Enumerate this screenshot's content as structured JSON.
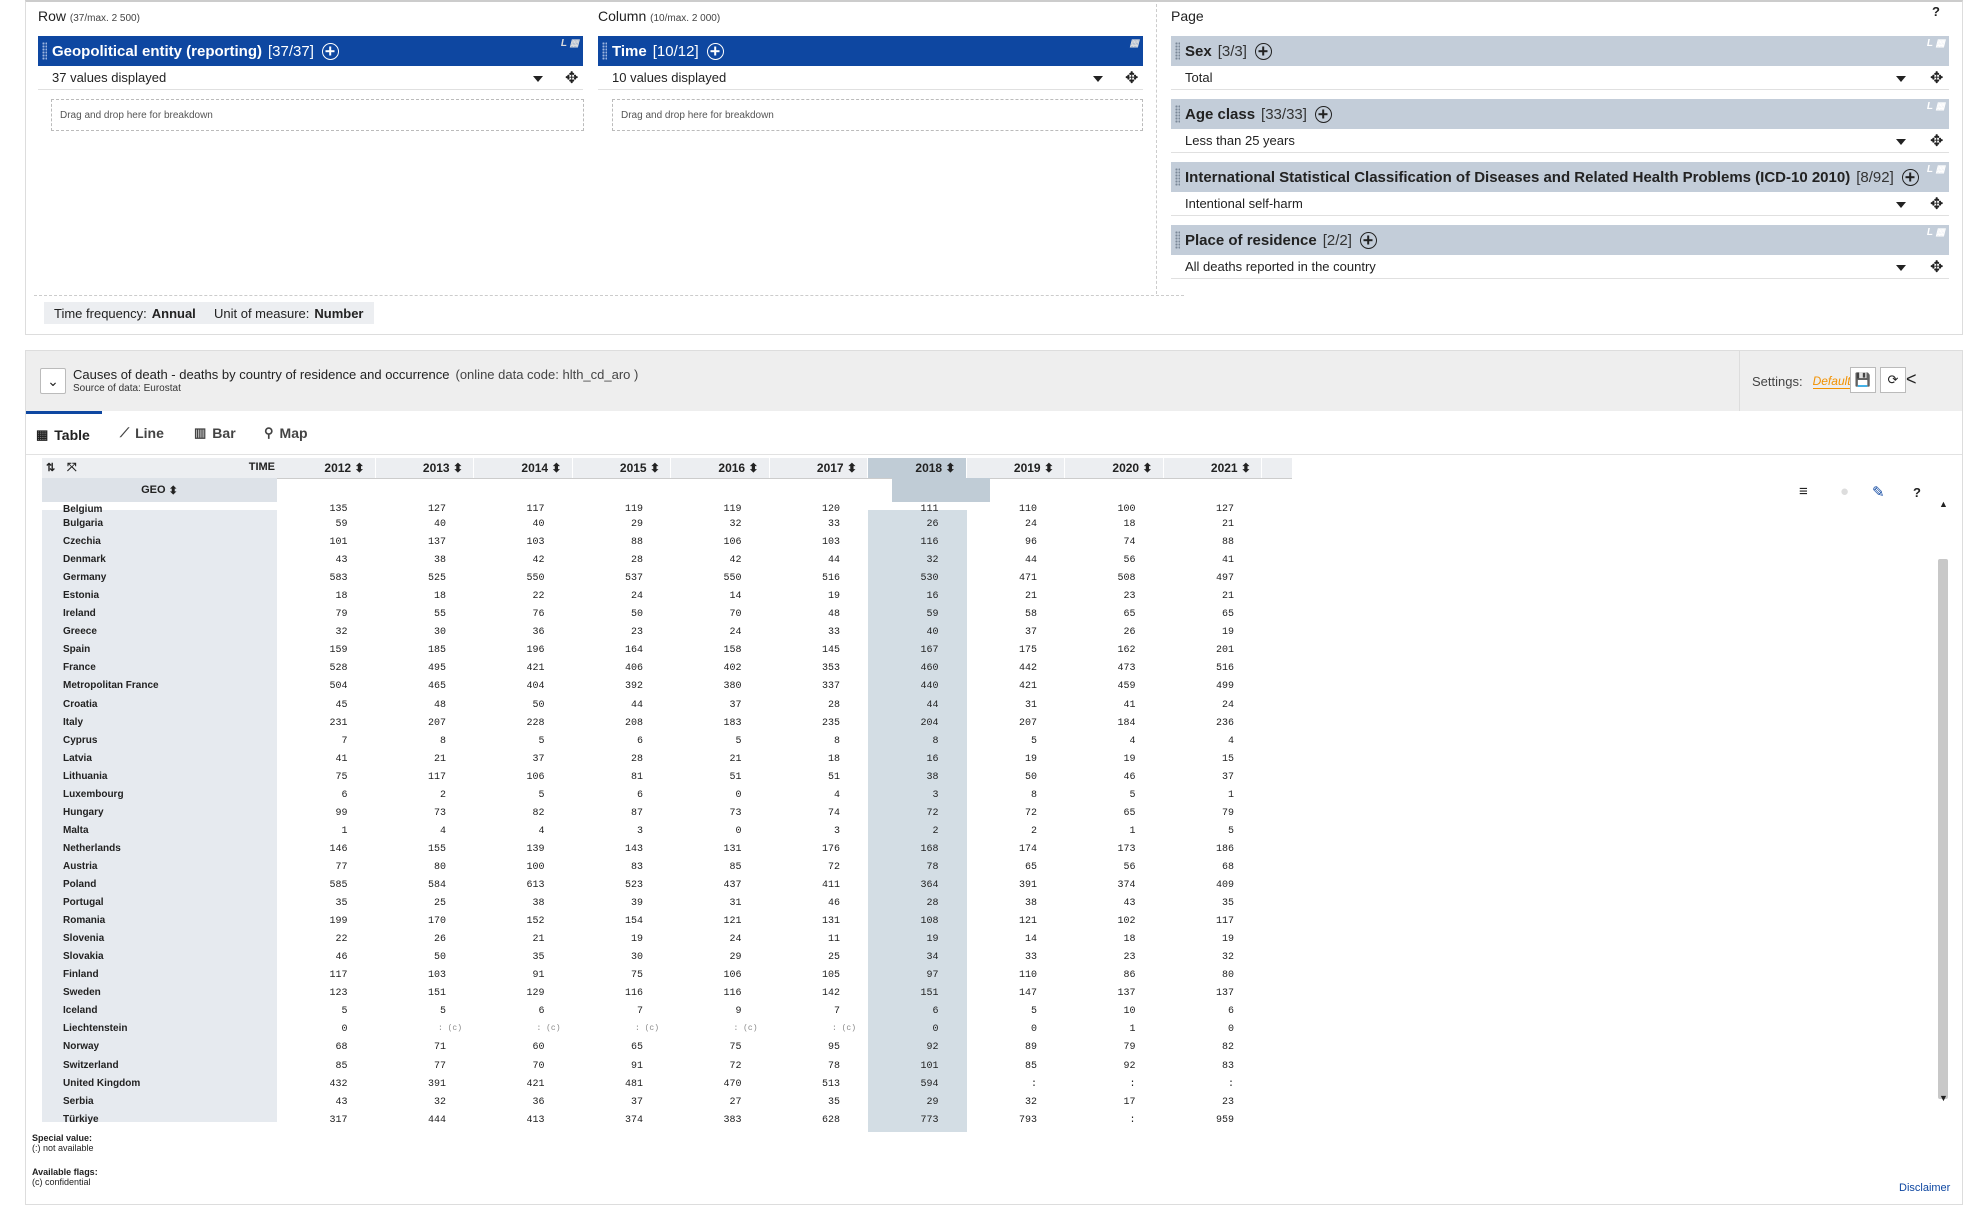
{
  "layout": {
    "row": {
      "label": "Row",
      "limit": "(37/max. 2 500)",
      "dimension": {
        "name": "Geopolitical entity (reporting)",
        "count": "[37/37]",
        "tag": "L"
      },
      "selection": "37 values displayed",
      "drop_hint": "Drag and drop here for breakdown"
    },
    "column": {
      "label": "Column",
      "limit": "(10/max. 2 000)",
      "dimension": {
        "name": "Time",
        "count": "[10/12]"
      },
      "selection": "10 values displayed",
      "drop_hint": "Drag and drop here for breakdown"
    },
    "page": {
      "label": "Page",
      "dimensions": [
        {
          "name": "Sex",
          "count": "[3/3]",
          "value": "Total",
          "tag": "L"
        },
        {
          "name": "Age class",
          "count": "[33/33]",
          "value": "Less than 25 years",
          "tag": "L"
        },
        {
          "name": "International Statistical Classification of Diseases and Related Health Problems (ICD-10 2010)",
          "count": "[8/92]",
          "value": "Intentional self-harm",
          "tag": "L"
        },
        {
          "name": "Place of residence",
          "count": "[2/2]",
          "value": "All deaths reported in the country",
          "tag": "L"
        }
      ]
    },
    "help_icon": "?",
    "chips": [
      {
        "label": "Time frequency:",
        "value": "Annual"
      },
      {
        "label": "Unit of measure:",
        "value": "Number"
      }
    ]
  },
  "dataset": {
    "title": "Causes of death - deaths by country of residence and occurrence",
    "code": "(online data code: hlth_cd_aro )",
    "source": "Source of data: Eurostat",
    "settings_label": "Settings:",
    "settings_value": "Default"
  },
  "tabs": [
    {
      "label": "Table",
      "icon": "table-icon"
    },
    {
      "label": "Line",
      "icon": "line-chart-icon"
    },
    {
      "label": "Bar",
      "icon": "bar-chart-icon"
    },
    {
      "label": "Map",
      "icon": "map-pin-icon"
    }
  ],
  "table": {
    "time_header": "TIME",
    "geo_header": "GEO",
    "years": [
      "2012",
      "2013",
      "2014",
      "2015",
      "2016",
      "2017",
      "2018",
      "2019",
      "2020",
      "2021"
    ],
    "partial_row": {
      "geo": "Belgium",
      "values": [
        "135",
        "127",
        "117",
        "119",
        "119",
        "120",
        "111",
        "110",
        "100",
        "127"
      ]
    },
    "rows": [
      {
        "geo": "Bulgaria",
        "values": [
          "59",
          "40",
          "40",
          "29",
          "32",
          "33",
          "26",
          "24",
          "18",
          "21"
        ]
      },
      {
        "geo": "Czechia",
        "values": [
          "101",
          "137",
          "103",
          "88",
          "106",
          "103",
          "116",
          "96",
          "74",
          "88"
        ]
      },
      {
        "geo": "Denmark",
        "values": [
          "43",
          "38",
          "42",
          "28",
          "42",
          "44",
          "32",
          "44",
          "56",
          "41"
        ]
      },
      {
        "geo": "Germany",
        "values": [
          "583",
          "525",
          "550",
          "537",
          "550",
          "516",
          "530",
          "471",
          "508",
          "497"
        ]
      },
      {
        "geo": "Estonia",
        "values": [
          "18",
          "18",
          "22",
          "24",
          "14",
          "19",
          "16",
          "21",
          "23",
          "21"
        ]
      },
      {
        "geo": "Ireland",
        "values": [
          "79",
          "55",
          "76",
          "50",
          "70",
          "48",
          "59",
          "58",
          "65",
          "65"
        ]
      },
      {
        "geo": "Greece",
        "values": [
          "32",
          "30",
          "36",
          "23",
          "24",
          "33",
          "40",
          "37",
          "26",
          "19"
        ]
      },
      {
        "geo": "Spain",
        "values": [
          "159",
          "185",
          "196",
          "164",
          "158",
          "145",
          "167",
          "175",
          "162",
          "201"
        ]
      },
      {
        "geo": "France",
        "values": [
          "528",
          "495",
          "421",
          "406",
          "402",
          "353",
          "460",
          "442",
          "473",
          "516"
        ]
      },
      {
        "geo": "Metropolitan France",
        "values": [
          "504",
          "465",
          "404",
          "392",
          "380",
          "337",
          "440",
          "421",
          "459",
          "499"
        ]
      },
      {
        "geo": "Croatia",
        "values": [
          "45",
          "48",
          "50",
          "44",
          "37",
          "28",
          "44",
          "31",
          "41",
          "24"
        ]
      },
      {
        "geo": "Italy",
        "values": [
          "231",
          "207",
          "228",
          "208",
          "183",
          "235",
          "204",
          "207",
          "184",
          "236"
        ]
      },
      {
        "geo": "Cyprus",
        "values": [
          "7",
          "8",
          "5",
          "6",
          "5",
          "8",
          "8",
          "5",
          "4",
          "4"
        ]
      },
      {
        "geo": "Latvia",
        "values": [
          "41",
          "21",
          "37",
          "28",
          "21",
          "18",
          "16",
          "19",
          "19",
          "15"
        ]
      },
      {
        "geo": "Lithuania",
        "values": [
          "75",
          "117",
          "106",
          "81",
          "51",
          "51",
          "38",
          "50",
          "46",
          "37"
        ]
      },
      {
        "geo": "Luxembourg",
        "values": [
          "6",
          "2",
          "5",
          "6",
          "0",
          "4",
          "3",
          "8",
          "5",
          "1"
        ]
      },
      {
        "geo": "Hungary",
        "values": [
          "99",
          "73",
          "82",
          "87",
          "73",
          "74",
          "72",
          "72",
          "65",
          "79"
        ]
      },
      {
        "geo": "Malta",
        "values": [
          "1",
          "4",
          "4",
          "3",
          "0",
          "3",
          "2",
          "2",
          "1",
          "5"
        ]
      },
      {
        "geo": "Netherlands",
        "values": [
          "146",
          "155",
          "139",
          "143",
          "131",
          "176",
          "168",
          "174",
          "173",
          "186"
        ]
      },
      {
        "geo": "Austria",
        "values": [
          "77",
          "80",
          "100",
          "83",
          "85",
          "72",
          "78",
          "65",
          "56",
          "68"
        ]
      },
      {
        "geo": "Poland",
        "values": [
          "585",
          "584",
          "613",
          "523",
          "437",
          "411",
          "364",
          "391",
          "374",
          "409"
        ]
      },
      {
        "geo": "Portugal",
        "values": [
          "35",
          "25",
          "38",
          "39",
          "31",
          "46",
          "28",
          "38",
          "43",
          "35"
        ]
      },
      {
        "geo": "Romania",
        "values": [
          "199",
          "170",
          "152",
          "154",
          "121",
          "131",
          "108",
          "121",
          "102",
          "117"
        ]
      },
      {
        "geo": "Slovenia",
        "values": [
          "22",
          "26",
          "21",
          "19",
          "24",
          "11",
          "19",
          "14",
          "18",
          "19"
        ]
      },
      {
        "geo": "Slovakia",
        "values": [
          "46",
          "50",
          "35",
          "30",
          "29",
          "25",
          "34",
          "33",
          "23",
          "32"
        ]
      },
      {
        "geo": "Finland",
        "values": [
          "117",
          "103",
          "91",
          "75",
          "106",
          "105",
          "97",
          "110",
          "86",
          "80"
        ]
      },
      {
        "geo": "Sweden",
        "values": [
          "123",
          "151",
          "129",
          "116",
          "116",
          "142",
          "151",
          "147",
          "137",
          "137"
        ]
      },
      {
        "geo": "Iceland",
        "values": [
          "5",
          "5",
          "6",
          "7",
          "9",
          "7",
          "6",
          "5",
          "10",
          "6"
        ]
      },
      {
        "geo": "Liechtenstein",
        "values": [
          "0",
          ": (c)",
          ": (c)",
          ": (c)",
          ": (c)",
          ": (c)",
          "0",
          "0",
          "1",
          "0"
        ]
      },
      {
        "geo": "Norway",
        "values": [
          "68",
          "71",
          "60",
          "65",
          "75",
          "95",
          "92",
          "89",
          "79",
          "82"
        ]
      },
      {
        "geo": "Switzerland",
        "values": [
          "85",
          "77",
          "70",
          "91",
          "72",
          "78",
          "101",
          "85",
          "92",
          "83"
        ]
      },
      {
        "geo": "United Kingdom",
        "values": [
          "432",
          "391",
          "421",
          "481",
          "470",
          "513",
          "594",
          ":",
          ":",
          ":"
        ]
      },
      {
        "geo": "Serbia",
        "values": [
          "43",
          "32",
          "36",
          "37",
          "27",
          "35",
          "29",
          "32",
          "17",
          "23"
        ]
      },
      {
        "geo": "Türkiye",
        "values": [
          "317",
          "444",
          "413",
          "374",
          "383",
          "628",
          "773",
          "793",
          ":",
          "959"
        ]
      }
    ]
  },
  "notes": {
    "special_title": "Special value:",
    "special_item": "(:) not available",
    "flags_title": "Available flags:",
    "flags_item": "(c) confidential"
  },
  "disclaimer": "Disclaimer",
  "colors": {
    "primary": "#0e47a1",
    "page_dim": "#c3cdd9",
    "highlight": "#d3dde4",
    "accent": "#f29100"
  }
}
